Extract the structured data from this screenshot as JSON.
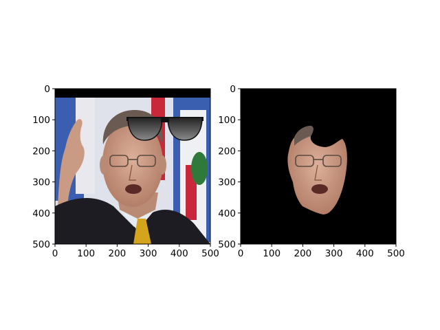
{
  "panels": [
    {
      "name": "original-with-sunglasses",
      "xlim": [
        0,
        500
      ],
      "ylim": [
        500,
        0
      ],
      "xticks": [
        "0",
        "100",
        "200",
        "300",
        "400",
        "500"
      ],
      "yticks": [
        "0",
        "100",
        "200",
        "300",
        "400",
        "500"
      ],
      "content": "photo-with-sunglasses-overlay",
      "sunglasses_center": [
        300,
        120
      ]
    },
    {
      "name": "face-mask-crop",
      "xlim": [
        0,
        500
      ],
      "ylim": [
        500,
        0
      ],
      "xticks": [
        "0",
        "100",
        "200",
        "300",
        "400",
        "500"
      ],
      "yticks": [
        "0",
        "100",
        "200",
        "300",
        "400",
        "500"
      ],
      "content": "masked-face-on-black",
      "background_color": "#000000"
    }
  ],
  "colors": {
    "axis": "#000000",
    "flag_blue": "#3a5fb0",
    "flag_red": "#c8283a",
    "suit": "#1c1c22",
    "skin": "#c99a84",
    "tie": "#d4a51c"
  }
}
